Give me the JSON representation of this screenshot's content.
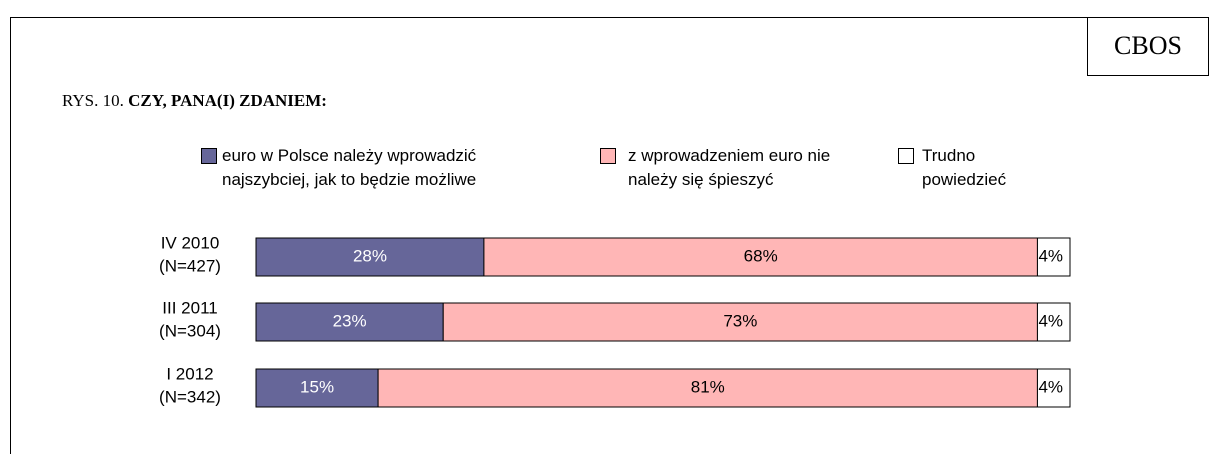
{
  "brand": "CBOS",
  "chart_data": {
    "type": "stacked_barh",
    "title_prefix": "RYS. 10.",
    "title": "CZY, PANA(I) ZDANIEM:",
    "categories": [
      "IV 2010",
      "III 2011",
      "I 2012"
    ],
    "sample_sizes": [
      "(N=427)",
      "(N=304)",
      "(N=342)"
    ],
    "xlim": [
      0,
      100
    ],
    "series": [
      {
        "name": "euro w Polsce należy wprowadzić najszybciej, jak to będzie możliwe",
        "color": "#666699",
        "label_color": "#ffffff",
        "values": [
          28,
          23,
          15
        ],
        "value_labels": [
          "28%",
          "23%",
          "15%"
        ]
      },
      {
        "name": "z wprowadzeniem euro nie należy się śpieszyć",
        "color": "#ffb6b6",
        "label_color": "#000000",
        "values": [
          68,
          73,
          81
        ],
        "value_labels": [
          "68%",
          "73%",
          "81%"
        ]
      },
      {
        "name": "Trudno powiedzieć",
        "color": "#ffffff",
        "label_color": "#000000",
        "values": [
          4,
          4,
          4
        ],
        "value_labels": [
          "4%",
          "4%",
          "4%"
        ]
      }
    ]
  }
}
